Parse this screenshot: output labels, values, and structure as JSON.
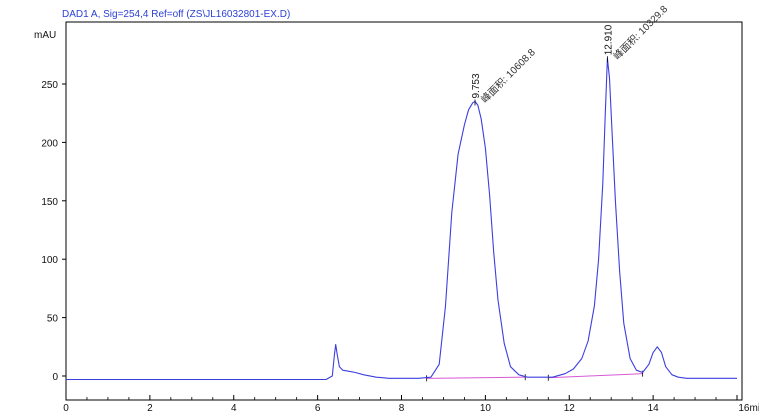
{
  "chart_data": {
    "type": "line",
    "title": "DAD1 A, Sig=254,4 Ref=off (ZS\\JL16032801-EX.D)",
    "ylabel": "mAU",
    "xlabel": "min",
    "xlim": [
      0,
      16
    ],
    "ylim": [
      -5,
      290
    ],
    "x_ticks": [
      0,
      2,
      4,
      6,
      8,
      10,
      12,
      14,
      16
    ],
    "x_tick_labels": [
      "0",
      "2",
      "4",
      "6",
      "8",
      "10",
      "12",
      "14",
      "16min"
    ],
    "y_ticks": [
      0,
      50,
      100,
      150,
      200,
      250
    ],
    "y_tick_labels": [
      "0",
      "50",
      "100",
      "150",
      "200",
      "250"
    ],
    "grid": false,
    "colors": {
      "signal": "#3b3fe0",
      "baseline": "#d65ad6",
      "title": "#2b3fd6",
      "axis": "#000000"
    },
    "series": [
      {
        "x": [
          0,
          1,
          2,
          3,
          4,
          5,
          6,
          6.2,
          6.35,
          6.4,
          6.43,
          6.47,
          6.52,
          6.6,
          6.75,
          6.9,
          7.1,
          7.4,
          7.7,
          8,
          8.4,
          8.7,
          8.9,
          9.05,
          9.2,
          9.35,
          9.5,
          9.6,
          9.7,
          9.753,
          9.82,
          9.9,
          10.0,
          10.1,
          10.2,
          10.3,
          10.45,
          10.6,
          10.8,
          11,
          11.3,
          11.6,
          11.9,
          12.1,
          12.3,
          12.45,
          12.6,
          12.7,
          12.8,
          12.86,
          12.91,
          12.96,
          13.02,
          13.1,
          13.2,
          13.3,
          13.45,
          13.6,
          13.75,
          13.9,
          14.0,
          14.1,
          14.2,
          14.3,
          14.45,
          14.6,
          14.8,
          15,
          15.5,
          16
        ],
        "y": [
          -3,
          -3,
          -3,
          -3,
          -3,
          -3,
          -3,
          -3,
          0,
          18,
          27,
          18,
          8,
          5,
          4,
          3,
          1,
          -1,
          -2,
          -2,
          -2,
          -1,
          10,
          60,
          140,
          190,
          215,
          228,
          234,
          235,
          232,
          220,
          195,
          155,
          105,
          65,
          28,
          8,
          1,
          -1,
          -1,
          -1,
          2,
          6,
          15,
          30,
          60,
          100,
          165,
          225,
          272,
          255,
          210,
          150,
          90,
          45,
          15,
          5,
          3,
          10,
          20,
          25,
          20,
          8,
          1,
          -1,
          -2,
          -2,
          -2,
          -2
        ]
      }
    ],
    "baselines": [
      {
        "x": [
          8.6,
          10.95
        ],
        "y": [
          -2,
          -1
        ]
      },
      {
        "x": [
          11.5,
          13.75
        ],
        "y": [
          -1.5,
          2
        ]
      }
    ],
    "peaks": [
      {
        "rt": 9.753,
        "height": 235,
        "rt_label": "9.753",
        "area_label": "峰面积: 10608.8"
      },
      {
        "rt": 12.91,
        "height": 272,
        "rt_label": "12.910",
        "area_label": "峰面积: 10329.8"
      }
    ]
  }
}
